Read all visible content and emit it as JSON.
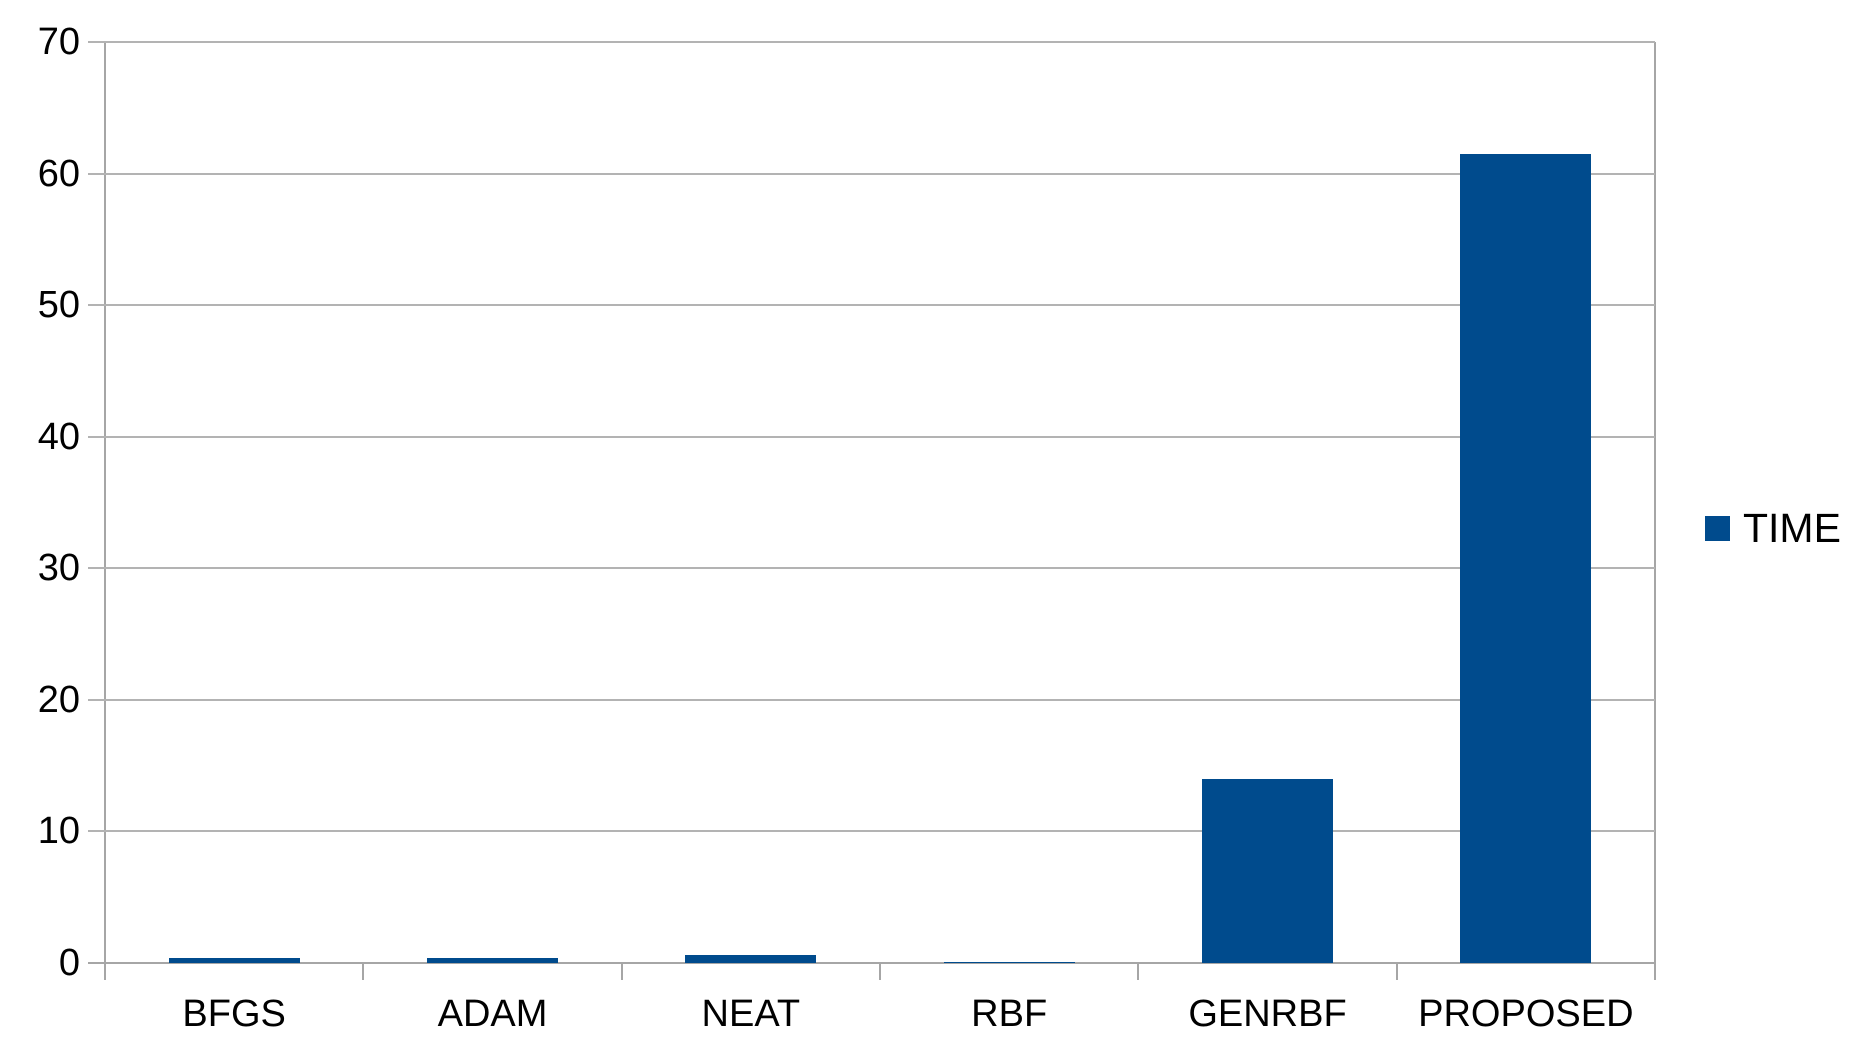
{
  "chart_data": {
    "type": "bar",
    "title": "",
    "xlabel": "",
    "ylabel": "",
    "categories": [
      "BFGS",
      "ADAM",
      "NEAT",
      "RBF",
      "GENRBF",
      "PROPOSED"
    ],
    "series": [
      {
        "name": "TIME",
        "values": [
          0.4,
          0.35,
          0.6,
          0.05,
          14,
          61.5
        ],
        "color": "#004b8d"
      }
    ],
    "ylim": [
      0,
      70
    ],
    "ytick_step": 10,
    "ytick_labels": [
      "0",
      "10",
      "20",
      "30",
      "40",
      "50",
      "60",
      "70"
    ],
    "grid": true,
    "legend_position": "right",
    "colors": {
      "bar": "#004b8d",
      "gridline": "#b3b3b3",
      "axis": "#a6a6a6",
      "text": "#000000",
      "background": "#ffffff"
    }
  }
}
